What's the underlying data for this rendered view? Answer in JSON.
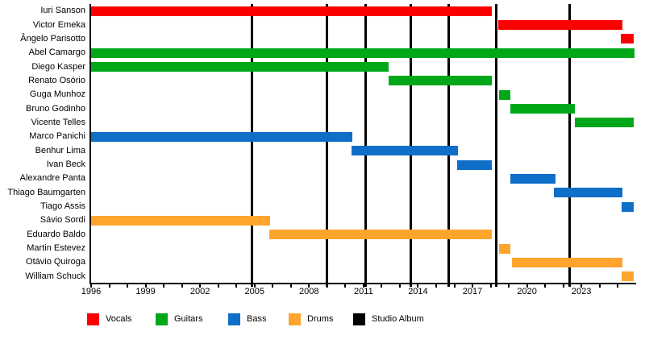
{
  "chart_data": {
    "type": "gantt-timeline",
    "title": "",
    "description": "Band members timeline: colored bars show each member's tenure by instrument; vertical black lines mark studio album releases.",
    "x_domain": [
      1996,
      2025.9
    ],
    "x_ticks": {
      "labels": [
        1996,
        1999,
        2002,
        2005,
        2008,
        2011,
        2014,
        2017,
        2020,
        2023
      ],
      "minor_from": 1996,
      "minor_to": 2025,
      "minor_interval": 1
    },
    "grid": false,
    "legend_position": "bottom",
    "legend": [
      {
        "label": "Vocals",
        "color": "#FA0000"
      },
      {
        "label": "Guitars",
        "color": "#00A819"
      },
      {
        "label": "Bass",
        "color": "#0E6EC8"
      },
      {
        "label": "Drums",
        "color": "#FFA42D"
      },
      {
        "label": "Studio Album",
        "color": "#000000"
      }
    ],
    "albums": {
      "label": "Studio Album",
      "color": "#000000",
      "years": [
        2004.85,
        2009.0,
        2011.1,
        2013.6,
        2015.7,
        2018.3,
        2022.35
      ]
    },
    "members": [
      {
        "name": "Iuri Sanson",
        "role": "Vocals",
        "start": 1996,
        "end": 2018.05
      },
      {
        "name": "Victor Emeka",
        "role": "Vocals",
        "start": 2018.4,
        "end": 2025.25
      },
      {
        "name": "Ângelo Parisotto",
        "role": "Vocals",
        "start": 2025.15,
        "end": 2025.9
      },
      {
        "name": "Abel Camargo",
        "role": "Guitars",
        "start": 1996,
        "end": 2025.9
      },
      {
        "name": "Diego Kasper",
        "role": "Guitars",
        "start": 1996,
        "end": 2012.4
      },
      {
        "name": "Renato Osório",
        "role": "Guitars",
        "start": 2012.4,
        "end": 2018.05
      },
      {
        "name": "Guga Munhoz",
        "role": "Guitars",
        "start": 2018.45,
        "end": 2019.1
      },
      {
        "name": "Bruno Godinho",
        "role": "Guitars",
        "start": 2019.1,
        "end": 2022.65
      },
      {
        "name": "Vicente Telles",
        "role": "Guitars",
        "start": 2022.65,
        "end": 2025.9
      },
      {
        "name": "Marco Panichi",
        "role": "Bass",
        "start": 1996,
        "end": 2010.4
      },
      {
        "name": "Benhur Lima",
        "role": "Bass",
        "start": 2010.35,
        "end": 2016.2
      },
      {
        "name": "Ivan Beck",
        "role": "Bass",
        "start": 2016.15,
        "end": 2018.05
      },
      {
        "name": "Alexandre Panta",
        "role": "Bass",
        "start": 2019.1,
        "end": 2021.55
      },
      {
        "name": "Thiago Baumgarten",
        "role": "Bass",
        "start": 2021.5,
        "end": 2025.25
      },
      {
        "name": "Tiago Assis",
        "role": "Bass",
        "start": 2025.2,
        "end": 2025.9
      },
      {
        "name": "Sávio Sordi",
        "role": "Drums",
        "start": 1996,
        "end": 2005.87
      },
      {
        "name": "Eduardo Baldo",
        "role": "Drums",
        "start": 2005.83,
        "end": 2018.05
      },
      {
        "name": "Martin Estevez",
        "role": "Drums",
        "start": 2018.45,
        "end": 2019.1
      },
      {
        "name": "Otávio Quiroga",
        "role": "Drums",
        "start": 2019.17,
        "end": 2025.25
      },
      {
        "name": "William Schuck",
        "role": "Drums",
        "start": 2025.2,
        "end": 2025.9
      }
    ]
  }
}
